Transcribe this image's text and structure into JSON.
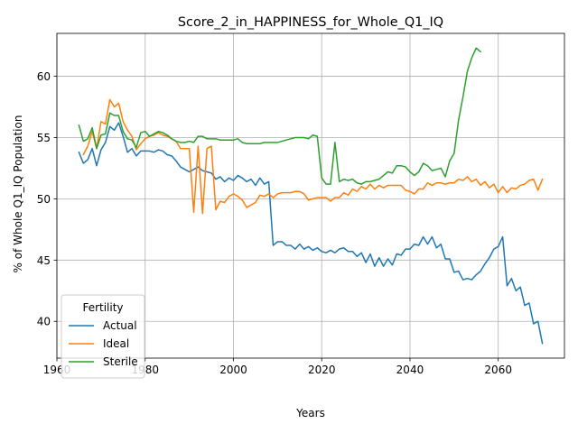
{
  "chart_data": {
    "type": "line",
    "title": "Score_2_in_HAPPINESS_for_Whole_Q1_IQ",
    "xlabel": "Years",
    "ylabel": "% of Whole Q1_IQ Population",
    "xlim": [
      1960,
      2075
    ],
    "ylim": [
      37,
      63.5
    ],
    "xticks": [
      1960,
      1980,
      2000,
      2020,
      2040,
      2060
    ],
    "yticks": [
      40,
      45,
      50,
      55,
      60
    ],
    "grid": true,
    "legend": {
      "title": "Fertility",
      "placement": "lower-left"
    },
    "series": [
      {
        "name": "Actual",
        "color": "#1f77b4",
        "x": [
          1965,
          1966,
          1967,
          1968,
          1969,
          1970,
          1971,
          1972,
          1973,
          1974,
          1975,
          1976,
          1977,
          1978,
          1979,
          1980,
          1981,
          1982,
          1983,
          1984,
          1985,
          1986,
          1987,
          1988,
          1989,
          1990,
          1991,
          1992,
          1993,
          1994,
          1995,
          1996,
          1997,
          1998,
          1999,
          2000,
          2001,
          2002,
          2003,
          2004,
          2005,
          2006,
          2007,
          2008,
          2009,
          2010,
          2011,
          2012,
          2013,
          2014,
          2015,
          2016,
          2017,
          2018,
          2019,
          2020,
          2021,
          2022,
          2023,
          2024,
          2025,
          2026,
          2027,
          2028,
          2029,
          2030,
          2031,
          2032,
          2033,
          2034,
          2035,
          2036,
          2037,
          2038,
          2039,
          2040,
          2041,
          2042,
          2043,
          2044,
          2045,
          2046,
          2047,
          2048,
          2049,
          2050,
          2051,
          2052,
          2053,
          2054,
          2055,
          2056,
          2057,
          2058,
          2059,
          2060,
          2061,
          2062,
          2063,
          2064,
          2065,
          2066,
          2067,
          2068,
          2069,
          2070
        ],
        "y": [
          53.8,
          52.9,
          53.2,
          54.1,
          52.7,
          54.0,
          54.6,
          55.9,
          55.6,
          56.2,
          55.1,
          53.8,
          54.1,
          53.5,
          53.9,
          53.9,
          53.9,
          53.8,
          54.0,
          53.9,
          53.6,
          53.5,
          53.1,
          52.6,
          52.4,
          52.2,
          52.4,
          52.6,
          52.3,
          52.2,
          52.1,
          51.6,
          51.8,
          51.4,
          51.7,
          51.5,
          51.9,
          51.7,
          51.4,
          51.6,
          51.1,
          51.7,
          51.2,
          51.4,
          46.2,
          46.5,
          46.5,
          46.2,
          46.2,
          45.9,
          46.3,
          45.9,
          46.1,
          45.8,
          46.0,
          45.7,
          45.6,
          45.8,
          45.6,
          45.9,
          46.0,
          45.7,
          45.7,
          45.3,
          45.6,
          44.8,
          45.5,
          44.5,
          45.2,
          44.5,
          45.1,
          44.6,
          45.5,
          45.4,
          45.9,
          45.9,
          46.3,
          46.2,
          46.9,
          46.3,
          46.9,
          46.0,
          46.3,
          45.1,
          45.1,
          44.0,
          44.1,
          43.4,
          43.5,
          43.4,
          43.8,
          44.1,
          44.7,
          45.2,
          45.9,
          46.1,
          46.9,
          42.9,
          43.5,
          42.5,
          42.8,
          41.3,
          41.5,
          39.8,
          40.0,
          38.2
        ]
      },
      {
        "name": "Ideal",
        "color": "#ff7f0e",
        "x": [
          1966,
          1967,
          1968,
          1969,
          1970,
          1971,
          1972,
          1973,
          1974,
          1975,
          1976,
          1977,
          1978,
          1979,
          1980,
          1981,
          1982,
          1983,
          1984,
          1985,
          1986,
          1987,
          1988,
          1989,
          1990,
          1991,
          1992,
          1993,
          1994,
          1995,
          1996,
          1997,
          1998,
          1999,
          2000,
          2001,
          2002,
          2003,
          2004,
          2005,
          2006,
          2007,
          2008,
          2009,
          2010,
          2011,
          2012,
          2013,
          2014,
          2015,
          2016,
          2017,
          2018,
          2019,
          2020,
          2021,
          2022,
          2023,
          2024,
          2025,
          2026,
          2027,
          2028,
          2029,
          2030,
          2031,
          2032,
          2033,
          2034,
          2035,
          2036,
          2037,
          2038,
          2039,
          2040,
          2041,
          2042,
          2043,
          2044,
          2045,
          2046,
          2047,
          2048,
          2049,
          2050,
          2051,
          2052,
          2053,
          2054,
          2055,
          2056,
          2057,
          2058,
          2059,
          2060,
          2061,
          2062,
          2063,
          2064,
          2065,
          2066,
          2067,
          2068,
          2069,
          2070
        ],
        "y": [
          53.6,
          54.3,
          55.5,
          54.1,
          56.3,
          56.1,
          58.1,
          57.5,
          57.8,
          56.3,
          55.6,
          55.1,
          54.0,
          54.5,
          54.9,
          55.1,
          55.2,
          55.4,
          55.2,
          55.1,
          54.9,
          54.7,
          54.1,
          54.1,
          54.1,
          48.9,
          54.3,
          48.8,
          54.1,
          54.3,
          49.1,
          49.8,
          49.7,
          50.2,
          50.4,
          50.2,
          49.9,
          49.3,
          49.5,
          49.7,
          50.3,
          50.2,
          50.4,
          50.1,
          50.4,
          50.5,
          50.5,
          50.5,
          50.6,
          50.6,
          50.4,
          49.9,
          50.0,
          50.1,
          50.1,
          50.1,
          49.8,
          50.1,
          50.1,
          50.5,
          50.3,
          50.8,
          50.6,
          51.0,
          50.8,
          51.2,
          50.8,
          51.1,
          50.9,
          51.1,
          51.1,
          51.1,
          51.1,
          50.7,
          50.6,
          50.4,
          50.8,
          50.8,
          51.3,
          51.1,
          51.3,
          51.3,
          51.2,
          51.3,
          51.3,
          51.6,
          51.5,
          51.8,
          51.4,
          51.6,
          51.1,
          51.4,
          50.9,
          51.2,
          50.5,
          51.0,
          50.5,
          50.9,
          50.8,
          51.1,
          51.2,
          51.5,
          51.6,
          50.7,
          51.6
        ]
      },
      {
        "name": "Sterile",
        "color": "#2ca02c",
        "x": [
          1965,
          1966,
          1967,
          1968,
          1969,
          1970,
          1971,
          1972,
          1973,
          1974,
          1975,
          1976,
          1977,
          1978,
          1979,
          1980,
          1981,
          1982,
          1983,
          1984,
          1985,
          1986,
          1987,
          1988,
          1989,
          1990,
          1991,
          1992,
          1993,
          1994,
          1995,
          1996,
          1997,
          1998,
          1999,
          2000,
          2001,
          2002,
          2003,
          2004,
          2005,
          2006,
          2007,
          2008,
          2009,
          2010,
          2011,
          2012,
          2013,
          2014,
          2015,
          2016,
          2017,
          2018,
          2019,
          2020,
          2021,
          2022,
          2023,
          2024,
          2025,
          2026,
          2027,
          2028,
          2029,
          2030,
          2031,
          2032,
          2033,
          2034,
          2035,
          2036,
          2037,
          2038,
          2039,
          2040,
          2041,
          2042,
          2043,
          2044,
          2045,
          2046,
          2047,
          2048,
          2049,
          2050,
          2051,
          2052,
          2053,
          2054,
          2055,
          2056
        ],
        "y": [
          56.0,
          54.7,
          54.9,
          55.8,
          54.1,
          55.2,
          55.3,
          57.0,
          56.8,
          56.8,
          55.5,
          54.9,
          54.8,
          54.2,
          55.4,
          55.5,
          55.1,
          55.3,
          55.5,
          55.4,
          55.2,
          54.9,
          54.7,
          54.6,
          54.6,
          54.7,
          54.6,
          55.1,
          55.1,
          54.9,
          54.9,
          54.9,
          54.8,
          54.8,
          54.8,
          54.8,
          54.9,
          54.6,
          54.5,
          54.5,
          54.5,
          54.5,
          54.6,
          54.6,
          54.6,
          54.6,
          54.7,
          54.8,
          54.9,
          55.0,
          55.0,
          55.0,
          54.9,
          55.2,
          55.1,
          51.7,
          51.2,
          51.2,
          54.6,
          51.4,
          51.6,
          51.5,
          51.6,
          51.3,
          51.2,
          51.4,
          51.4,
          51.5,
          51.6,
          51.9,
          52.2,
          52.1,
          52.7,
          52.7,
          52.6,
          52.2,
          51.9,
          52.2,
          52.9,
          52.7,
          52.3,
          52.4,
          52.5,
          51.8,
          53.1,
          53.7,
          56.4,
          58.3,
          60.4,
          61.5,
          62.3,
          62.0
        ]
      }
    ]
  }
}
